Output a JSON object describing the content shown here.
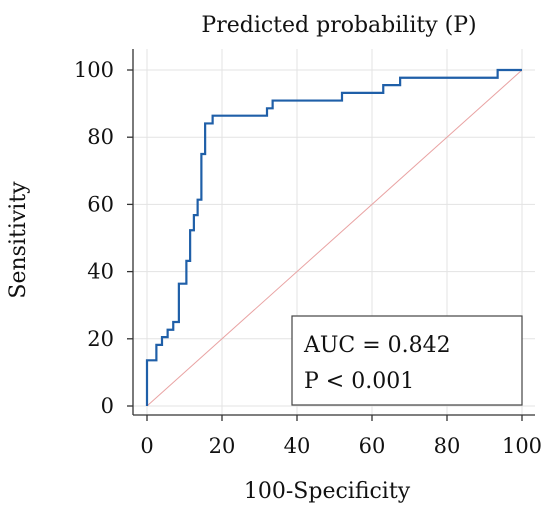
{
  "chart_data": {
    "type": "line",
    "title": "Predicted probability (P)",
    "xlabel": "100-Specificity",
    "ylabel": "Sensitivity",
    "xlim": [
      0,
      100
    ],
    "ylim": [
      0,
      100
    ],
    "xticks": [
      0,
      20,
      40,
      60,
      80,
      100
    ],
    "yticks": [
      0,
      20,
      40,
      60,
      80,
      100
    ],
    "grid": true,
    "series": [
      {
        "color": "#1f5fa8",
        "x": [
          0,
          0,
          2.5,
          2.5,
          4,
          4,
          5.5,
          5.5,
          7,
          7,
          8.5,
          8.5,
          10.5,
          10.5,
          11.5,
          11.5,
          12.5,
          12.5,
          13.5,
          13.5,
          14.5,
          14.5,
          15.5,
          15.5,
          17.5,
          17.5,
          18.5,
          18.5,
          32,
          32,
          33.5,
          33.5,
          52,
          52,
          63,
          63,
          67.5,
          67.5,
          93.5,
          93.5,
          100
        ],
        "y": [
          0,
          13.6,
          13.6,
          18.2,
          18.2,
          20.5,
          20.5,
          22.7,
          22.7,
          25,
          25,
          36.4,
          36.4,
          43.2,
          43.2,
          52.3,
          52.3,
          56.8,
          56.8,
          61.4,
          61.4,
          75,
          75,
          84.1,
          84.1,
          86.4,
          86.4,
          86.4,
          86.4,
          88.6,
          88.6,
          90.9,
          90.9,
          93.2,
          93.2,
          95.5,
          95.5,
          97.7,
          97.7,
          100,
          100
        ]
      },
      {
        "color": "#e9a3a3",
        "x": [
          0,
          100
        ],
        "y": [
          0,
          100
        ]
      }
    ],
    "annotations": [
      "AUC = 0.842",
      "P < 0.001"
    ]
  }
}
